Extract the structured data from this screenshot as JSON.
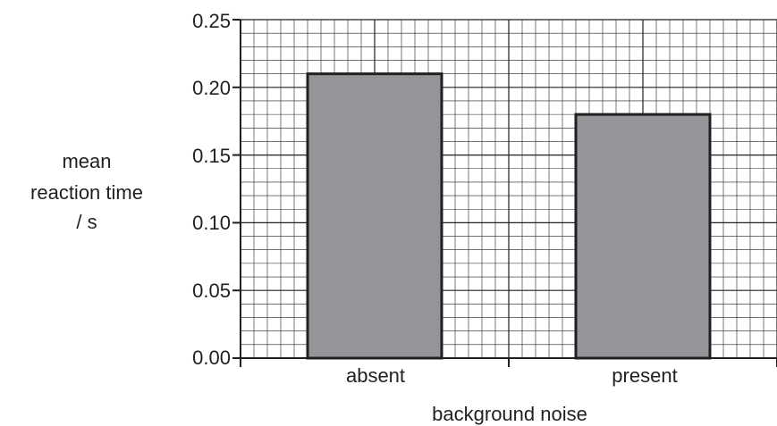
{
  "chart_data": {
    "type": "bar",
    "categories": [
      "absent",
      "present"
    ],
    "values": [
      0.21,
      0.18
    ],
    "title": "",
    "xlabel": "background noise",
    "ylabel_lines": [
      "mean",
      "reaction time",
      "/ s"
    ],
    "ylim": [
      0,
      0.25
    ],
    "yticks": [
      "0.00",
      "0.05",
      "0.10",
      "0.15",
      "0.20",
      "0.25"
    ],
    "grid": true,
    "colors": {
      "bar_fill": "#939598",
      "bar_stroke": "#231f20",
      "grid_line": "#231f20",
      "text": "#231f20"
    }
  }
}
